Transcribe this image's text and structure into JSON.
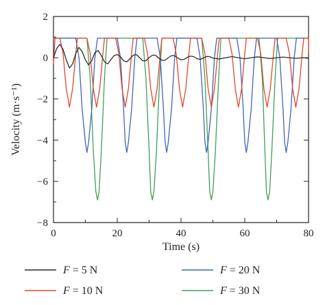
{
  "chart_data": {
    "type": "line",
    "xlabel": "Time (s)",
    "ylabel": "Velocity (m·s⁻¹)",
    "xlim": [
      0,
      80
    ],
    "ylim": [
      -8,
      2
    ],
    "xticks": [
      0,
      20,
      40,
      60,
      80
    ],
    "yticks": [
      2,
      0,
      -2,
      -4,
      -6,
      -8
    ],
    "x_tick_labels": [
      "0",
      "20",
      "40",
      "60",
      "80"
    ],
    "y_tick_labels": [
      "2",
      "0",
      "−2",
      "−4",
      "−6",
      "−8"
    ],
    "grid": false,
    "legend_position": "below",
    "series": [
      {
        "name": "F = 5 N",
        "label_parts": [
          "F",
          " = 5 N"
        ],
        "color": "#2b2b2b",
        "points": [
          [
            0,
            0
          ],
          [
            1,
            0.45
          ],
          [
            2,
            0.65
          ],
          [
            3,
            0.4
          ],
          [
            4,
            -0.1
          ],
          [
            5,
            -0.5
          ],
          [
            6,
            -0.3
          ],
          [
            7,
            0.2
          ],
          [
            8,
            0.5
          ],
          [
            9,
            0.3
          ],
          [
            10,
            -0.1
          ],
          [
            11,
            -0.35
          ],
          [
            12,
            -0.15
          ],
          [
            13,
            0.25
          ],
          [
            14,
            0.35
          ],
          [
            15,
            0.1
          ],
          [
            16,
            -0.2
          ],
          [
            17,
            -0.3
          ],
          [
            18,
            -0.1
          ],
          [
            19,
            0.1
          ],
          [
            20,
            0.15
          ],
          [
            21,
            0.05
          ],
          [
            22,
            -0.15
          ],
          [
            23,
            -0.2
          ],
          [
            24,
            -0.05
          ],
          [
            25,
            0.12
          ],
          [
            26,
            0.15
          ],
          [
            27,
            0.0
          ],
          [
            28,
            -0.15
          ],
          [
            29,
            -0.15
          ],
          [
            30,
            0.0
          ],
          [
            31,
            0.12
          ],
          [
            32,
            0.12
          ],
          [
            33,
            -0.02
          ],
          [
            34,
            -0.12
          ],
          [
            35,
            -0.12
          ],
          [
            36,
            0.0
          ],
          [
            37,
            0.1
          ],
          [
            38,
            0.1
          ],
          [
            39,
            -0.02
          ],
          [
            40,
            -0.1
          ],
          [
            41,
            -0.08
          ],
          [
            42,
            0.02
          ],
          [
            43,
            0.08
          ],
          [
            44,
            0.05
          ],
          [
            45,
            -0.05
          ],
          [
            46,
            -0.08
          ],
          [
            47,
            -0.02
          ],
          [
            48,
            0.06
          ],
          [
            49,
            0.05
          ],
          [
            50,
            -0.02
          ],
          [
            52,
            -0.06
          ],
          [
            54,
            0.0
          ],
          [
            56,
            0.05
          ],
          [
            58,
            0.0
          ],
          [
            60,
            -0.05
          ],
          [
            62,
            0.0
          ],
          [
            64,
            0.04
          ],
          [
            66,
            0.0
          ],
          [
            68,
            -0.04
          ],
          [
            70,
            0.0
          ],
          [
            72,
            0.03
          ],
          [
            74,
            0.0
          ],
          [
            76,
            -0.03
          ],
          [
            78,
            0.0
          ],
          [
            80,
            -0.03
          ]
        ]
      },
      {
        "name": "F = 10 N",
        "label_parts": [
          "F",
          " = 10 N"
        ],
        "color": "#e0462b",
        "points": [
          [
            0,
            -0.3
          ],
          [
            0.5,
            0.95
          ],
          [
            2,
            0.95
          ],
          [
            3,
            0.2
          ],
          [
            4,
            -1.5
          ],
          [
            5,
            -2.4
          ],
          [
            6,
            -1.5
          ],
          [
            7,
            0.2
          ],
          [
            7.5,
            0.95
          ],
          [
            10.5,
            0.95
          ],
          [
            11.5,
            0.2
          ],
          [
            12.5,
            -1.5
          ],
          [
            13.5,
            -2.4
          ],
          [
            14.5,
            -1.5
          ],
          [
            15.5,
            0.2
          ],
          [
            16,
            0.95
          ],
          [
            19.5,
            0.95
          ],
          [
            20.5,
            0.2
          ],
          [
            21.5,
            -1.5
          ],
          [
            22.5,
            -2.4
          ],
          [
            23.5,
            -1.5
          ],
          [
            24.5,
            0.2
          ],
          [
            25,
            0.95
          ],
          [
            28.5,
            0.95
          ],
          [
            29.5,
            0.2
          ],
          [
            30.5,
            -1.5
          ],
          [
            31.5,
            -2.4
          ],
          [
            32.5,
            -1.5
          ],
          [
            33.5,
            0.2
          ],
          [
            34,
            0.95
          ],
          [
            37.5,
            0.95
          ],
          [
            38.5,
            0.2
          ],
          [
            39.5,
            -1.5
          ],
          [
            40.5,
            -2.4
          ],
          [
            41.5,
            -1.5
          ],
          [
            42.5,
            0.2
          ],
          [
            43,
            0.95
          ],
          [
            46.5,
            0.95
          ],
          [
            47.5,
            0.2
          ],
          [
            48.5,
            -1.5
          ],
          [
            49.5,
            -2.4
          ],
          [
            50.5,
            -1.5
          ],
          [
            51.5,
            0.2
          ],
          [
            52,
            0.95
          ],
          [
            55,
            0.95
          ],
          [
            56,
            0.2
          ],
          [
            57,
            -1.5
          ],
          [
            58,
            -2.4
          ],
          [
            59,
            -1.5
          ],
          [
            60,
            0.2
          ],
          [
            60.5,
            0.95
          ],
          [
            64,
            0.95
          ],
          [
            65,
            0.2
          ],
          [
            66,
            -1.5
          ],
          [
            67,
            -2.4
          ],
          [
            68,
            -1.5
          ],
          [
            69,
            0.2
          ],
          [
            69.5,
            0.95
          ],
          [
            73,
            0.95
          ],
          [
            74,
            0.2
          ],
          [
            75,
            -1.5
          ],
          [
            76,
            -2.4
          ],
          [
            77,
            -1.5
          ],
          [
            78,
            0.2
          ],
          [
            78.5,
            0.95
          ],
          [
            80,
            0.95
          ],
          [
            80,
            0.2
          ]
        ]
      },
      {
        "name": "F = 20 N",
        "label_parts": [
          "F",
          " = 20 N"
        ],
        "color": "#3f64b6",
        "points": [
          [
            0,
            0.95
          ],
          [
            7,
            0.95
          ],
          [
            8,
            0.0
          ],
          [
            9,
            -2.5
          ],
          [
            10,
            -4.1
          ],
          [
            10.5,
            -4.6
          ],
          [
            11,
            -4.1
          ],
          [
            12,
            -2.5
          ],
          [
            13,
            0.0
          ],
          [
            13.8,
            0.95
          ],
          [
            20,
            0.95
          ],
          [
            21,
            0.0
          ],
          [
            22,
            -2.5
          ],
          [
            22.5,
            -4.1
          ],
          [
            23,
            -4.6
          ],
          [
            23.5,
            -4.1
          ],
          [
            24.5,
            -2.5
          ],
          [
            25.5,
            0.0
          ],
          [
            26.2,
            0.95
          ],
          [
            32.5,
            0.95
          ],
          [
            33.5,
            0.0
          ],
          [
            34.5,
            -2.5
          ],
          [
            35,
            -4.1
          ],
          [
            35.5,
            -4.6
          ],
          [
            36,
            -4.1
          ],
          [
            37,
            -2.5
          ],
          [
            38,
            0.0
          ],
          [
            38.7,
            0.95
          ],
          [
            45,
            0.95
          ],
          [
            46,
            0.0
          ],
          [
            47,
            -2.5
          ],
          [
            47.5,
            -4.1
          ],
          [
            48,
            -4.6
          ],
          [
            48.5,
            -4.1
          ],
          [
            49.5,
            -2.5
          ],
          [
            50.5,
            0.0
          ],
          [
            51.2,
            0.95
          ],
          [
            57.5,
            0.95
          ],
          [
            58.5,
            0.0
          ],
          [
            59.5,
            -2.5
          ],
          [
            60,
            -4.1
          ],
          [
            60.5,
            -4.6
          ],
          [
            61,
            -4.1
          ],
          [
            62,
            -2.5
          ],
          [
            63,
            0.0
          ],
          [
            63.7,
            0.95
          ],
          [
            70,
            0.95
          ],
          [
            71,
            0.0
          ],
          [
            72,
            -2.5
          ],
          [
            72.5,
            -4.1
          ],
          [
            73,
            -4.6
          ],
          [
            73.5,
            -4.1
          ],
          [
            74.5,
            -2.5
          ],
          [
            75.5,
            0.0
          ],
          [
            76.2,
            0.95
          ],
          [
            80,
            0.95
          ]
        ]
      },
      {
        "name": "F = 30 N",
        "label_parts": [
          "F",
          " = 30 N"
        ],
        "color": "#3e9e56",
        "points": [
          [
            0,
            0.95
          ],
          [
            10.5,
            0.95
          ],
          [
            11.5,
            -1.0
          ],
          [
            12.5,
            -4.5
          ],
          [
            13.3,
            -6.5
          ],
          [
            13.8,
            -6.9
          ],
          [
            14.3,
            -6.5
          ],
          [
            15,
            -4.5
          ],
          [
            16,
            -1.0
          ],
          [
            16.8,
            0.95
          ],
          [
            28,
            0.95
          ],
          [
            29,
            -1.0
          ],
          [
            30,
            -4.5
          ],
          [
            30.5,
            -6.5
          ],
          [
            31,
            -6.9
          ],
          [
            31.5,
            -6.5
          ],
          [
            32.3,
            -4.5
          ],
          [
            33.3,
            -1.0
          ],
          [
            34,
            0.95
          ],
          [
            46.5,
            0.95
          ],
          [
            47.5,
            -1.0
          ],
          [
            48.5,
            -4.5
          ],
          [
            49,
            -6.5
          ],
          [
            49.5,
            -6.9
          ],
          [
            50,
            -6.5
          ],
          [
            50.8,
            -4.5
          ],
          [
            51.8,
            -1.0
          ],
          [
            52.5,
            0.95
          ],
          [
            64.5,
            0.95
          ],
          [
            65.5,
            -1.0
          ],
          [
            66.3,
            -4.5
          ],
          [
            66.8,
            -6.5
          ],
          [
            67.3,
            -6.9
          ],
          [
            67.8,
            -6.5
          ],
          [
            68.5,
            -4.5
          ],
          [
            69.5,
            -1.0
          ],
          [
            70.3,
            0.95
          ],
          [
            80,
            0.95
          ]
        ]
      }
    ]
  }
}
